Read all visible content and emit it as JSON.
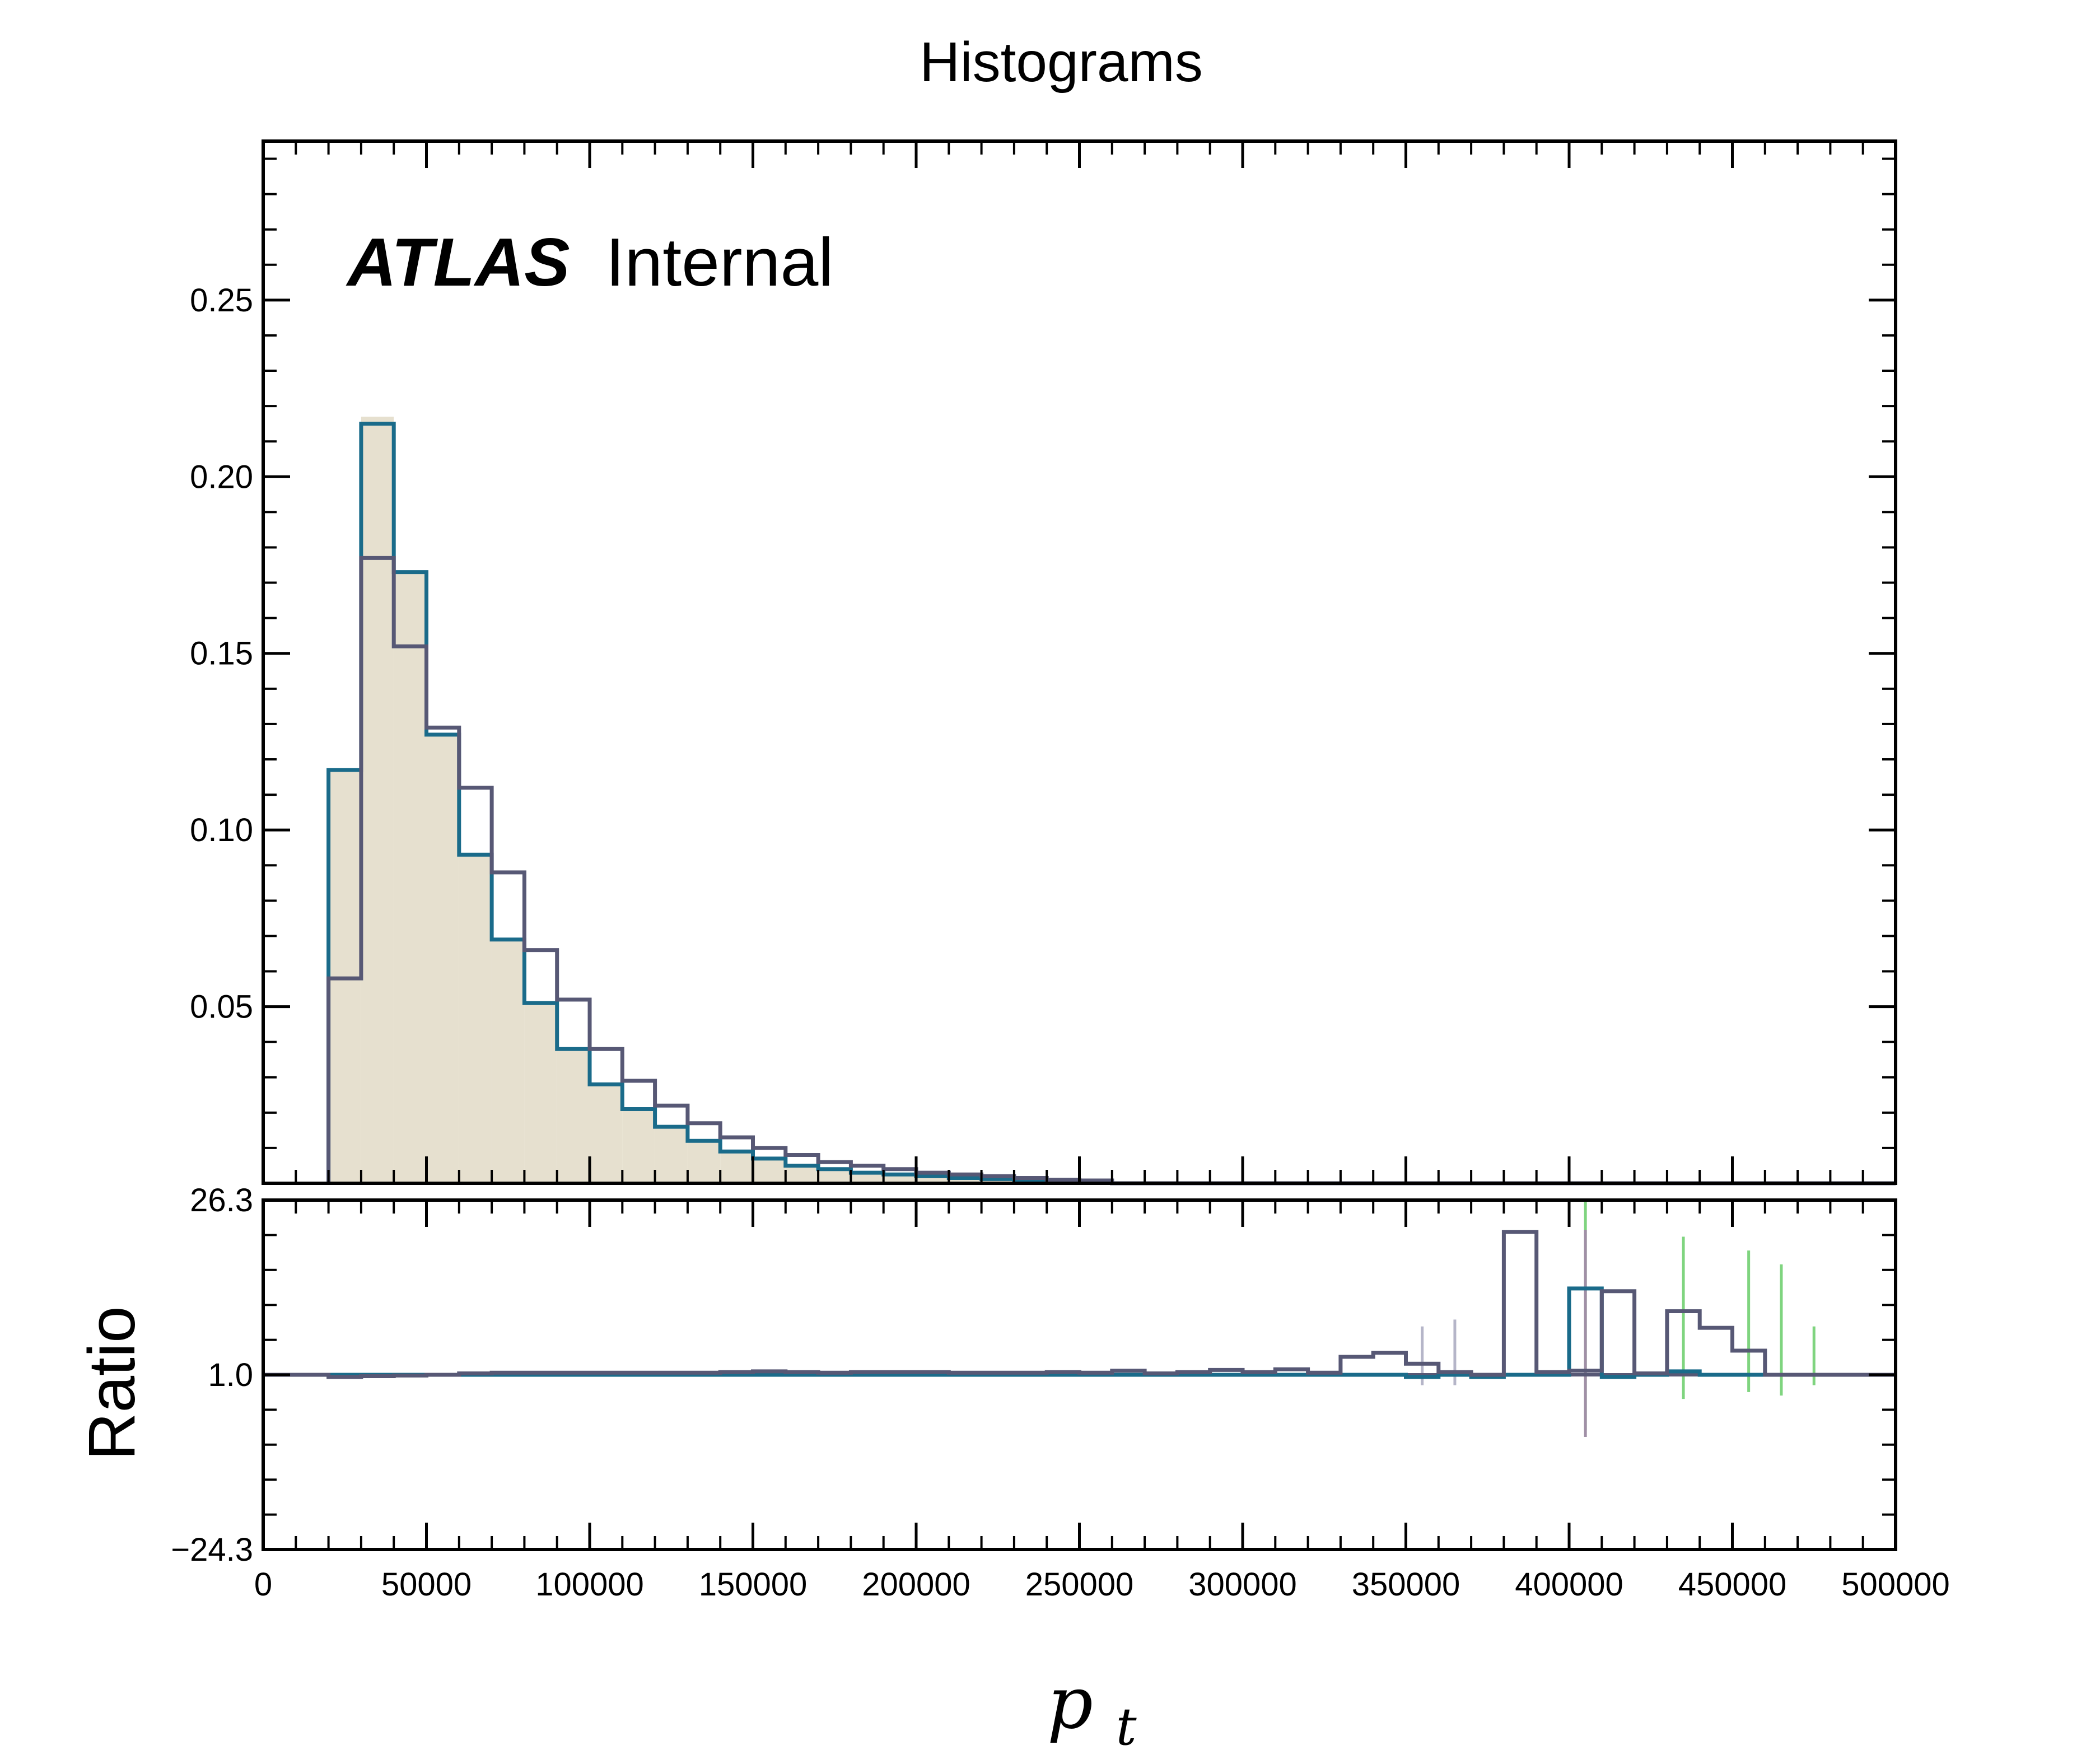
{
  "chart_data": {
    "type": "histogram",
    "title": "Histograms",
    "annotation": {
      "bold_italic": "ATLAS",
      "rest": "Internal"
    },
    "xlabel": "p",
    "xlabel_sub": "t",
    "xlim": [
      0,
      500000
    ],
    "xticks": [
      0,
      50000,
      100000,
      150000,
      200000,
      250000,
      300000,
      350000,
      400000,
      450000,
      500000
    ],
    "xtick_labels": [
      "0",
      "50000",
      "100000",
      "150000",
      "200000",
      "250000",
      "300000",
      "350000",
      "400000",
      "450000",
      "500000"
    ],
    "bin_width": 10000,
    "main": {
      "ylim": [
        0,
        0.295
      ],
      "yticks": [
        0.05,
        0.1,
        0.15,
        0.2,
        0.25
      ],
      "ytick_labels": [
        "0.05",
        "0.10",
        "0.15",
        "0.20",
        "0.25"
      ],
      "series": [
        {
          "style": "filled",
          "color": "#e6e0cf",
          "bin_start": 20000,
          "values": [
            0.117,
            0.217,
            0.173,
            0.127,
            0.093,
            0.069,
            0.051,
            0.038,
            0.028,
            0.021,
            0.016,
            0.012,
            0.009,
            0.007,
            0.005,
            0.004,
            0.003,
            0.0025,
            0.002,
            0.0015,
            0.0012,
            0.001,
            0.0008,
            0.0006
          ]
        },
        {
          "style": "step",
          "color": "#1a6b8a",
          "bin_start": 20000,
          "values": [
            0.117,
            0.215,
            0.173,
            0.127,
            0.093,
            0.069,
            0.051,
            0.038,
            0.028,
            0.021,
            0.016,
            0.012,
            0.009,
            0.007,
            0.005,
            0.004,
            0.003,
            0.0025,
            0.002,
            0.0015,
            0.0012,
            0.001,
            0.0008,
            0.0006
          ]
        },
        {
          "style": "step",
          "color": "#575875",
          "bin_start": 20000,
          "values": [
            0.058,
            0.177,
            0.152,
            0.129,
            0.112,
            0.088,
            0.066,
            0.052,
            0.038,
            0.029,
            0.022,
            0.017,
            0.013,
            0.01,
            0.008,
            0.006,
            0.005,
            0.004,
            0.003,
            0.0025,
            0.002,
            0.0015,
            0.001,
            0.0008
          ]
        }
      ]
    },
    "ratio": {
      "ylabel": "Ratio",
      "ylim": [
        -24.3,
        26.3
      ],
      "yticks": [
        26.3,
        1.0,
        -24.3
      ],
      "ytick_labels": [
        "26.3",
        "1.0",
        "−24.3"
      ],
      "series": [
        {
          "style": "step",
          "color": "#1a6b8a",
          "bin_start": 20000,
          "values": [
            1.0,
            1.0,
            1.0,
            1.0,
            1.0,
            1.0,
            1.0,
            1.0,
            1.0,
            1.0,
            1.0,
            1.0,
            1.0,
            1.0,
            1.0,
            1.0,
            1.0,
            1.0,
            1.0,
            1.0,
            1.0,
            1.0,
            1.0,
            1.0,
            1.0,
            1.0,
            1.0,
            1.0,
            1.0,
            1.0,
            1.0,
            1.0,
            1.0,
            0.7,
            1.0,
            0.7,
            1.0,
            1.0,
            13.5,
            0.7,
            1.0,
            1.5,
            1.0,
            1.0,
            1.0,
            1.0,
            1.0
          ]
        },
        {
          "style": "step",
          "color": "#575875",
          "bin_start": 20000,
          "values": [
            0.7,
            0.8,
            0.9,
            1.0,
            1.2,
            1.3,
            1.3,
            1.3,
            1.3,
            1.3,
            1.3,
            1.3,
            1.4,
            1.5,
            1.4,
            1.3,
            1.4,
            1.4,
            1.4,
            1.3,
            1.3,
            1.3,
            1.4,
            1.3,
            1.6,
            1.2,
            1.4,
            1.7,
            1.4,
            1.8,
            1.3,
            3.6,
            4.2,
            2.6,
            1.4,
            1.0,
            21.7,
            1.4,
            1.6,
            13.1,
            1.2,
            10.2,
            7.8,
            4.5,
            1.0,
            1.0,
            1.0
          ]
        }
      ],
      "error_bars": [
        {
          "x": 405000,
          "low": -7.0,
          "high": 26.3,
          "color": "#7fd47f"
        },
        {
          "x": 405000,
          "low": -8.0,
          "high": 22.0,
          "color": "#a08fa6"
        },
        {
          "x": 435000,
          "low": -2.5,
          "high": 21.0,
          "color": "#7fd47f"
        },
        {
          "x": 455000,
          "low": -1.5,
          "high": 19.0,
          "color": "#7fd47f"
        },
        {
          "x": 465000,
          "low": -2.0,
          "high": 17.0,
          "color": "#7fd47f"
        },
        {
          "x": 475000,
          "low": -0.5,
          "high": 8.0,
          "color": "#7fd47f"
        },
        {
          "x": 355000,
          "low": -0.5,
          "high": 8.0,
          "color": "#b5b5c8"
        },
        {
          "x": 365000,
          "low": -0.5,
          "high": 9.0,
          "color": "#b5b5c8"
        }
      ]
    }
  }
}
